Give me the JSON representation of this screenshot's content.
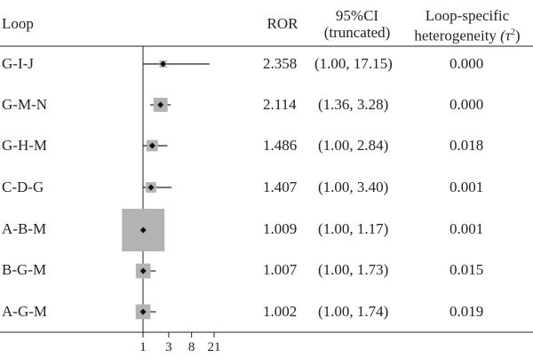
{
  "header": {
    "loop": "Loop",
    "ror": "ROR",
    "ci_line1": "95%CI",
    "ci_line2": "(truncated)",
    "het_line1": "Loop-specific",
    "het_line2": "heterogeneity",
    "het_symbol": "(τ",
    "het_sup": "2",
    "het_close": ")"
  },
  "rows": [
    {
      "loop": "G-I-J",
      "ror": "2.358",
      "ci": "(1.00, 17.15)",
      "tau2": "0.000"
    },
    {
      "loop": "G-M-N",
      "ror": "2.114",
      "ci": "(1.36, 3.28)",
      "tau2": "0.000"
    },
    {
      "loop": "G-H-M",
      "ror": "1.486",
      "ci": "(1.00, 2.84)",
      "tau2": "0.018"
    },
    {
      "loop": "C-D-G",
      "ror": "1.407",
      "ci": "(1.00, 3.40)",
      "tau2": "0.001"
    },
    {
      "loop": "A-B-M",
      "ror": "1.009",
      "ci": "(1.00, 1.17)",
      "tau2": "0.001"
    },
    {
      "loop": "B-G-M",
      "ror": "1.007",
      "ci": "(1.00, 1.73)",
      "tau2": "0.015"
    },
    {
      "loop": "A-G-M",
      "ror": "1.002",
      "ci": "(1.00, 1.74)",
      "tau2": "0.019"
    }
  ],
  "chart_data": {
    "type": "forest",
    "x_scale": "log",
    "x_ticks": [
      1,
      3,
      8,
      21
    ],
    "x_tick_labels": [
      "1",
      "3",
      "8",
      "21"
    ],
    "null_line": 1,
    "points": [
      {
        "loop": "G-I-J",
        "ror": 2.358,
        "ci_low": 1.0,
        "ci_high": 17.15,
        "weight": 0.02
      },
      {
        "loop": "G-M-N",
        "ror": 2.114,
        "ci_low": 1.36,
        "ci_high": 3.28,
        "weight": 0.11
      },
      {
        "loop": "G-H-M",
        "ror": 1.486,
        "ci_low": 1.0,
        "ci_high": 2.84,
        "weight": 0.07
      },
      {
        "loop": "C-D-G",
        "ror": 1.407,
        "ci_low": 1.0,
        "ci_high": 3.4,
        "weight": 0.06
      },
      {
        "loop": "A-B-M",
        "ror": 1.009,
        "ci_low": 1.0,
        "ci_high": 1.17,
        "weight": 1.0
      },
      {
        "loop": "B-G-M",
        "ror": 1.007,
        "ci_low": 1.0,
        "ci_high": 1.73,
        "weight": 0.12
      },
      {
        "loop": "A-G-M",
        "ror": 1.002,
        "ci_low": 1.0,
        "ci_high": 1.74,
        "weight": 0.12
      }
    ],
    "colors": {
      "box": "#b3b3b3",
      "point": "#111111",
      "line": "#222222"
    }
  }
}
